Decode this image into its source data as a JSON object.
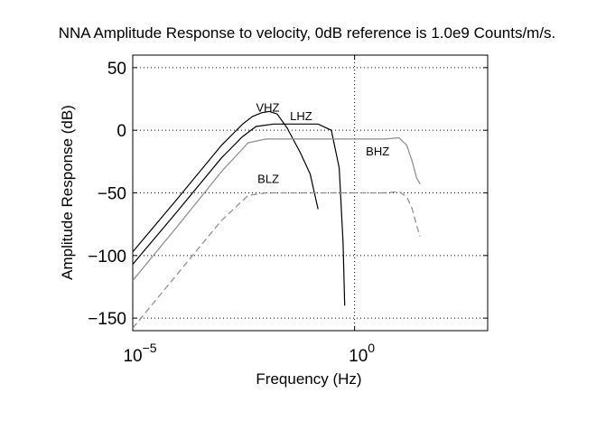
{
  "chart_data": {
    "type": "line",
    "title": "NNA Amplitude Response to velocity, 0dB reference is 1.0e9 Counts/m/s.",
    "xlabel": "Frequency (Hz)",
    "ylabel": "Amplitude Response (dB)",
    "x_scale": "log",
    "xlim": [
      1e-05,
      1000
    ],
    "ylim": [
      -160,
      60
    ],
    "x_ticks": [
      {
        "value": 1e-05,
        "label_base": "10",
        "label_exp": "−5"
      },
      {
        "value": 1,
        "label_base": "10",
        "label_exp": "0"
      }
    ],
    "y_ticks": [
      {
        "value": 50,
        "label": "50"
      },
      {
        "value": 0,
        "label": "0"
      },
      {
        "value": -50,
        "label": "−50"
      },
      {
        "value": -100,
        "label": "−100"
      },
      {
        "value": -150,
        "label": "−150"
      }
    ],
    "grid": true,
    "legend": "none",
    "series": [
      {
        "name": "VHZ",
        "color": "#000000",
        "dash": "solid",
        "label_at": [
          0.006,
          15
        ],
        "x": [
          1e-05,
          0.0001,
          0.001,
          0.003,
          0.005,
          0.008,
          0.012,
          0.018,
          0.03,
          0.06,
          0.1,
          0.15
        ],
        "y": [
          -97,
          -55,
          -12,
          5,
          11,
          14,
          15,
          13,
          2,
          -18,
          -35,
          -63
        ]
      },
      {
        "name": "LHZ",
        "color": "#000000",
        "dash": "solid",
        "label_at": [
          0.035,
          8
        ],
        "x": [
          1e-05,
          0.0001,
          0.001,
          0.003,
          0.006,
          0.015,
          0.05,
          0.15,
          0.3,
          0.45,
          0.55,
          0.6
        ],
        "y": [
          -107,
          -65,
          -22,
          -5,
          3,
          5,
          5,
          5,
          0,
          -30,
          -90,
          -140
        ]
      },
      {
        "name": "BHZ",
        "color": "#8a8a8a",
        "dash": "solid",
        "label_at": [
          1.8,
          -20
        ],
        "x": [
          1e-05,
          0.0001,
          0.001,
          0.004,
          0.01,
          0.1,
          1,
          5,
          10,
          15,
          20,
          25,
          30
        ],
        "y": [
          -120,
          -77,
          -33,
          -10,
          -7,
          -7,
          -7,
          -7,
          -6,
          -12,
          -25,
          -38,
          -43
        ]
      },
      {
        "name": "BLZ",
        "color": "#8a8a8a",
        "dash": "dashed",
        "label_at": [
          0.0065,
          -42
        ],
        "x": [
          1e-05,
          0.0001,
          0.001,
          0.004,
          0.01,
          0.1,
          1,
          5,
          10,
          15,
          20,
          25,
          30
        ],
        "y": [
          -158,
          -115,
          -72,
          -52,
          -50,
          -50,
          -50,
          -50,
          -49,
          -53,
          -63,
          -76,
          -85
        ]
      }
    ]
  }
}
